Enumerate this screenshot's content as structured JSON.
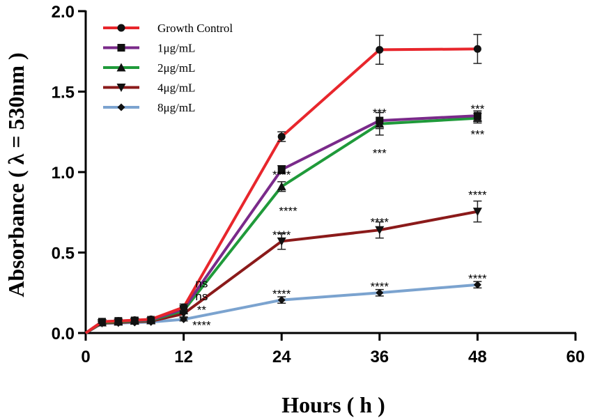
{
  "chart_data": {
    "type": "line",
    "title": "",
    "xlabel": "Hours ( h )",
    "ylabel": "Absorbance ( λ = 530nm )",
    "xlim": [
      0,
      60
    ],
    "ylim": [
      0,
      2.0
    ],
    "xticks": [
      0,
      12,
      24,
      36,
      48,
      60
    ],
    "yticks": [
      0.0,
      0.5,
      1.0,
      1.5,
      2.0
    ],
    "xtick_labels": [
      "0",
      "12",
      "24",
      "36",
      "48",
      "60"
    ],
    "ytick_labels": [
      "0.0",
      "0.5",
      "1.0",
      "1.5",
      "2.0"
    ],
    "grid": false,
    "legend_position": "top-left",
    "x": [
      0,
      2,
      4,
      6,
      8,
      12,
      24,
      36,
      48
    ],
    "series": [
      {
        "name": "Growth Control",
        "color": "#e8262c",
        "marker": "circle",
        "values": [
          0.0,
          0.07,
          0.075,
          0.08,
          0.085,
          0.16,
          1.22,
          1.76,
          1.765
        ],
        "errors": [
          0,
          0.01,
          0.01,
          0.01,
          0.01,
          0.02,
          0.03,
          0.09,
          0.09
        ]
      },
      {
        "name": "1μg/mL",
        "color": "#7a2a8a",
        "marker": "square",
        "values": [
          0.0,
          0.07,
          0.075,
          0.078,
          0.082,
          0.15,
          1.015,
          1.32,
          1.35
        ],
        "errors": [
          0,
          0.01,
          0.01,
          0.01,
          0.01,
          0.02,
          0.025,
          0.05,
          0.03
        ]
      },
      {
        "name": "2μg/mL",
        "color": "#1f9a3a",
        "marker": "triangle-up",
        "values": [
          0.0,
          0.065,
          0.07,
          0.075,
          0.078,
          0.14,
          0.91,
          1.3,
          1.335
        ],
        "errors": [
          0,
          0.01,
          0.01,
          0.01,
          0.01,
          0.02,
          0.03,
          0.07,
          0.03
        ]
      },
      {
        "name": "4μg/mL",
        "color": "#8b1a1a",
        "marker": "triangle-down",
        "values": [
          0.0,
          0.062,
          0.065,
          0.07,
          0.073,
          0.12,
          0.57,
          0.64,
          0.755
        ],
        "errors": [
          0,
          0.01,
          0.01,
          0.01,
          0.01,
          0.02,
          0.05,
          0.05,
          0.065
        ]
      },
      {
        "name": "8μg/mL",
        "color": "#7ba3cf",
        "marker": "diamond",
        "values": [
          0.0,
          0.06,
          0.062,
          0.065,
          0.068,
          0.085,
          0.205,
          0.25,
          0.3
        ],
        "errors": [
          0,
          0.01,
          0.01,
          0.01,
          0.01,
          0.01,
          0.02,
          0.02,
          0.02
        ]
      }
    ],
    "annotations": [
      {
        "x": 14.2,
        "y": 0.31,
        "text": "ns"
      },
      {
        "x": 14.2,
        "y": 0.23,
        "text": "ns"
      },
      {
        "x": 14.2,
        "y": 0.145,
        "text": "**"
      },
      {
        "x": 14.2,
        "y": 0.05,
        "text": "****"
      },
      {
        "x": 24,
        "y": 0.985,
        "text": "****"
      },
      {
        "x": 24.8,
        "y": 0.76,
        "text": "****"
      },
      {
        "x": 24,
        "y": 0.61,
        "text": "****"
      },
      {
        "x": 24,
        "y": 0.245,
        "text": "****"
      },
      {
        "x": 36,
        "y": 1.37,
        "text": "***"
      },
      {
        "x": 36,
        "y": 1.12,
        "text": "***"
      },
      {
        "x": 36,
        "y": 0.69,
        "text": "****"
      },
      {
        "x": 36,
        "y": 0.29,
        "text": "****"
      },
      {
        "x": 48,
        "y": 1.395,
        "text": "***"
      },
      {
        "x": 48,
        "y": 1.235,
        "text": "***"
      },
      {
        "x": 48,
        "y": 0.86,
        "text": "****"
      },
      {
        "x": 48,
        "y": 0.34,
        "text": "****"
      }
    ]
  }
}
